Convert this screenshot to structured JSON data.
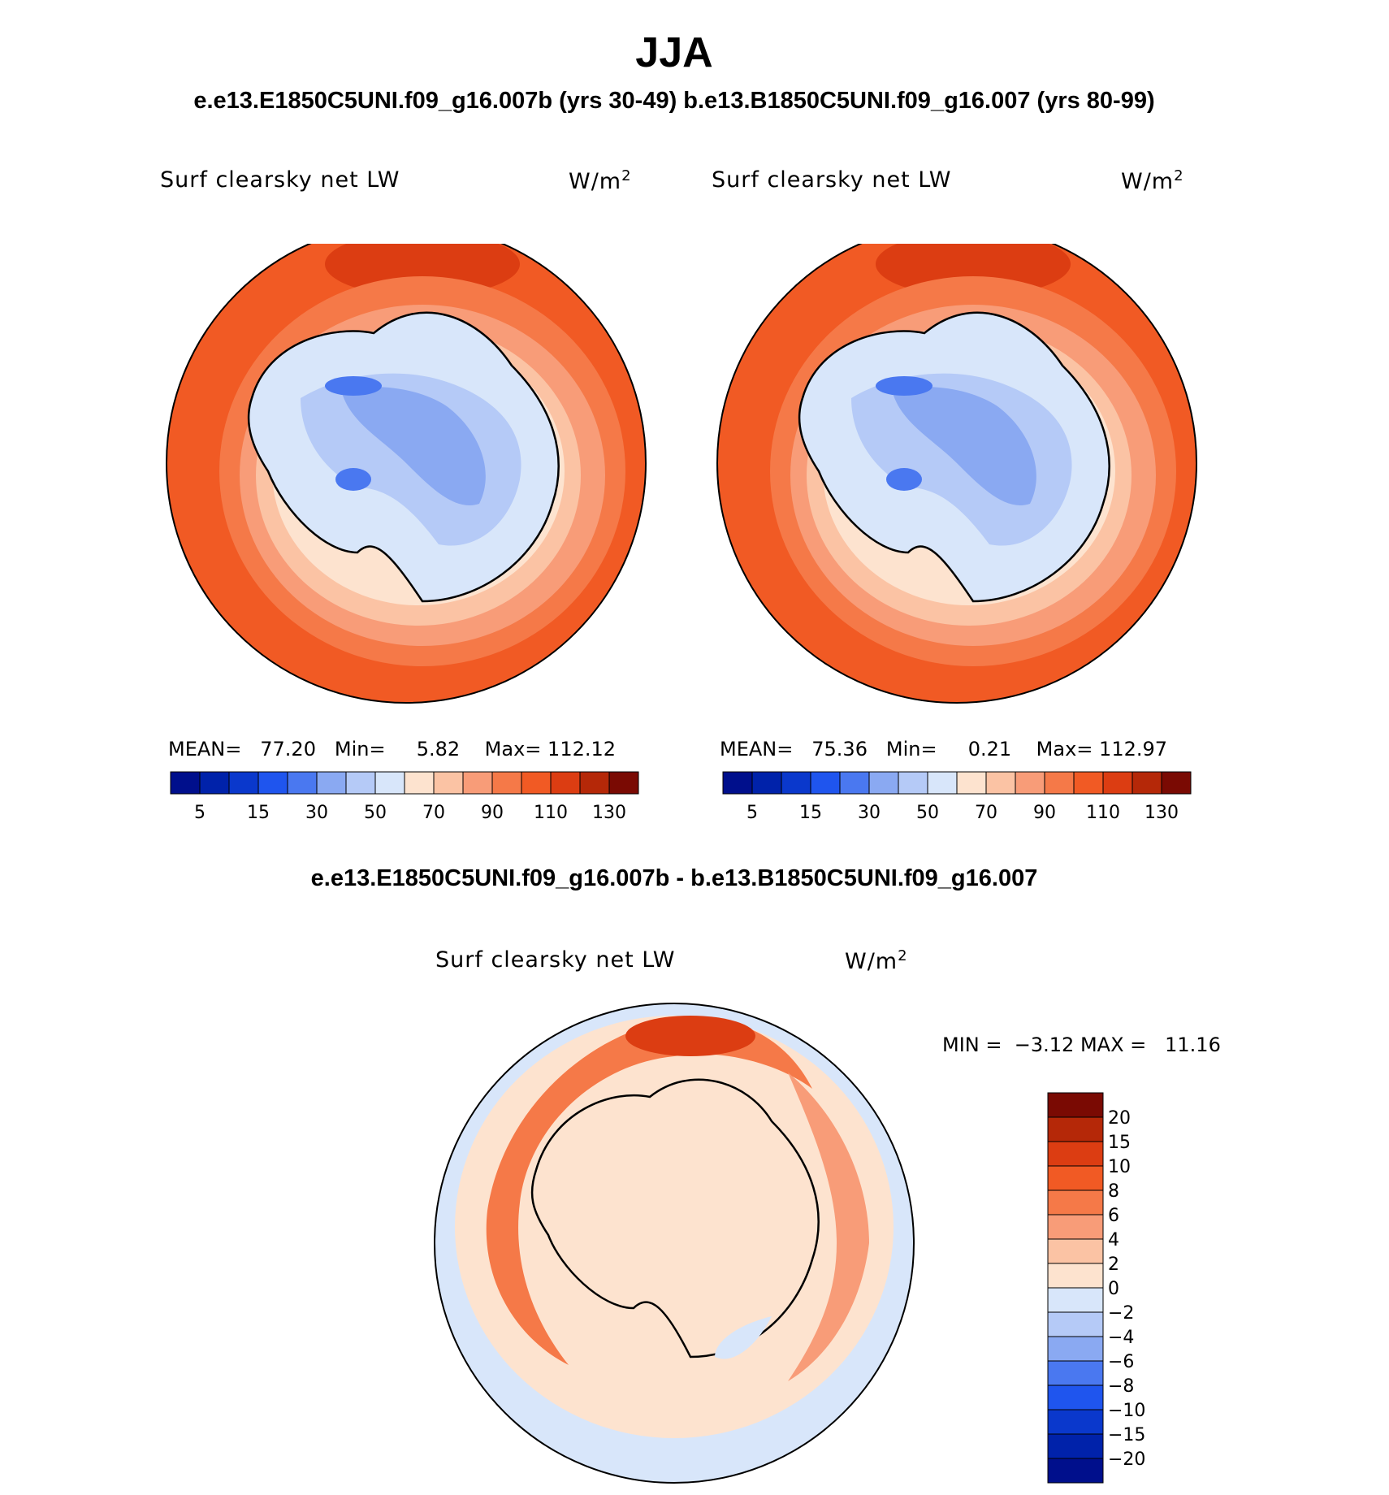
{
  "figure": {
    "season": "JJA",
    "subtitle": "e.e13.E1850C5UNI.f09_g16.007b (yrs 30-49)  b.e13.B1850C5UNI.f09_g16.007 (yrs 80-99)",
    "diff_title": "e.e13.E1850C5UNI.f09_g16.007b - b.e13.B1850C5UNI.f09_g16.007"
  },
  "panels": [
    {
      "variable": "Surf clearsky net LW",
      "units": "W/m",
      "units_exp": "2",
      "stats": {
        "mean_label": "MEAN=",
        "mean": "77.20",
        "min_label": "Min=",
        "min": "5.82",
        "max_label": "Max=",
        "max": "112.12"
      }
    },
    {
      "variable": "Surf clearsky net LW",
      "units": "W/m",
      "units_exp": "2",
      "stats": {
        "mean_label": "MEAN=",
        "mean": "75.36",
        "min_label": "Min=",
        "min": "0.21",
        "max_label": "Max=",
        "max": "112.97"
      }
    },
    {
      "variable": "Surf clearsky net LW",
      "units": "W/m",
      "units_exp": "2",
      "stats": {
        "min_label": "MIN =",
        "min": "−3.12",
        "max_label": "MAX =",
        "max": "11.16"
      }
    }
  ],
  "chart_data": [
    {
      "type": "heatmap",
      "projection": "polar-stereographic-south",
      "title": "Surf clearsky net LW",
      "units": "W/m2",
      "stats": {
        "mean": 77.2,
        "min": 5.82,
        "max": 112.12
      },
      "levels": [
        5,
        10,
        15,
        20,
        30,
        40,
        50,
        60,
        70,
        80,
        90,
        100,
        110,
        120,
        130
      ],
      "tick_labels": [
        "5",
        "15",
        "30",
        "50",
        "70",
        "90",
        "110",
        "130"
      ],
      "colors": [
        "#000f8c",
        "#0022aa",
        "#0a38cc",
        "#1f55ee",
        "#4a78f0",
        "#8aa9f2",
        "#b5caf7",
        "#d8e6fa",
        "#fde3cf",
        "#fbc3a4",
        "#f89c78",
        "#f57948",
        "#f15a24",
        "#dc3d12",
        "#b52808",
        "#7a0a03"
      ]
    },
    {
      "type": "heatmap",
      "projection": "polar-stereographic-south",
      "title": "Surf clearsky net LW",
      "units": "W/m2",
      "stats": {
        "mean": 75.36,
        "min": 0.21,
        "max": 112.97
      },
      "levels": [
        5,
        10,
        15,
        20,
        30,
        40,
        50,
        60,
        70,
        80,
        90,
        100,
        110,
        120,
        130
      ],
      "tick_labels": [
        "5",
        "15",
        "30",
        "50",
        "70",
        "90",
        "110",
        "130"
      ],
      "colors": [
        "#000f8c",
        "#0022aa",
        "#0a38cc",
        "#1f55ee",
        "#4a78f0",
        "#8aa9f2",
        "#b5caf7",
        "#d8e6fa",
        "#fde3cf",
        "#fbc3a4",
        "#f89c78",
        "#f57948",
        "#f15a24",
        "#dc3d12",
        "#b52808",
        "#7a0a03"
      ]
    },
    {
      "type": "heatmap",
      "projection": "polar-stereographic-south",
      "title": "Surf clearsky net LW",
      "units": "W/m2",
      "stats": {
        "min": -3.12,
        "max": 11.16
      },
      "levels": [
        -20,
        -15,
        -10,
        -8,
        -6,
        -4,
        -2,
        0,
        2,
        4,
        6,
        8,
        10,
        15,
        20
      ],
      "tick_labels": [
        "−20",
        "−15",
        "−10",
        "−8",
        "−6",
        "−4",
        "−2",
        "0",
        "2",
        "4",
        "6",
        "8",
        "10",
        "15",
        "20"
      ],
      "colors": [
        "#000f8c",
        "#0022aa",
        "#0a38cc",
        "#1f55ee",
        "#4a78f0",
        "#8aa9f2",
        "#b5caf7",
        "#d8e6fa",
        "#fde3cf",
        "#fbc3a4",
        "#f89c78",
        "#f57948",
        "#f15a24",
        "#dc3d12",
        "#b52808",
        "#7a0a03"
      ]
    }
  ]
}
